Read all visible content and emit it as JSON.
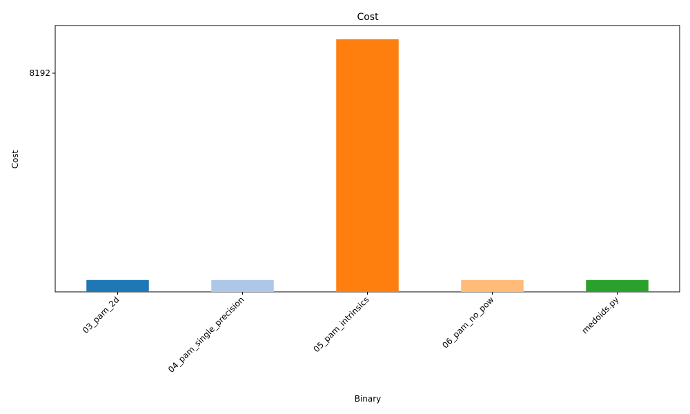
{
  "chart_data": {
    "type": "bar",
    "title": "Cost",
    "xlabel": "Binary",
    "ylabel": "Cost",
    "yscale": "log2",
    "ylim": [
      700,
      14000
    ],
    "yticks": [
      {
        "value": 8192,
        "label": "8192"
      }
    ],
    "categories": [
      "03_pam_2d",
      "04_pam_single_precision",
      "05_pam_intrinsics",
      "06_pam_no_pow",
      "medoids.py"
    ],
    "values": [
      800,
      800,
      12000,
      800,
      800
    ],
    "colors": [
      "#1f77b4",
      "#aec7e8",
      "#ff7f0e",
      "#ffbb78",
      "#2ca02c"
    ],
    "grid": false,
    "legend": "none"
  }
}
